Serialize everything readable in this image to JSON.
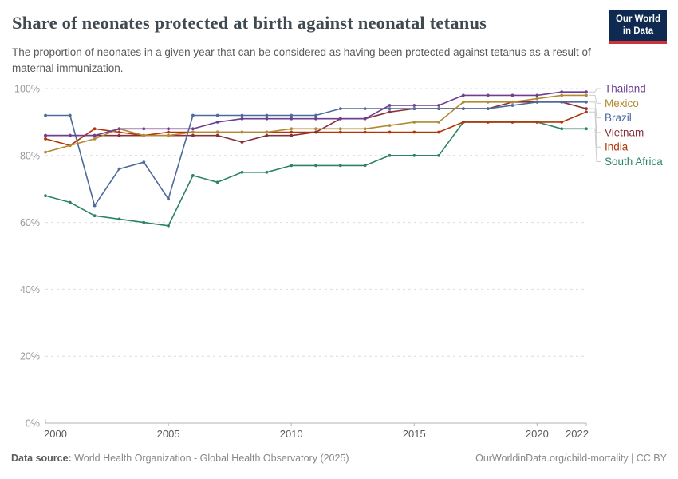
{
  "header": {
    "title": "Share of neonates protected at birth against neonatal tetanus",
    "subtitle": "The proportion of neonates in a given year that can be considered as having been protected against tetanus as a result of maternal immunization.",
    "logo": {
      "line1": "Our World",
      "line2": "in Data",
      "bg": "#0f2a50",
      "stripe": "#cf3337"
    }
  },
  "chart_data": {
    "type": "line",
    "x": [
      2000,
      2001,
      2002,
      2003,
      2004,
      2005,
      2006,
      2007,
      2008,
      2009,
      2010,
      2011,
      2012,
      2013,
      2014,
      2015,
      2016,
      2017,
      2018,
      2019,
      2020,
      2021,
      2022
    ],
    "series": [
      {
        "name": "Thailand",
        "color": "#6d3e91",
        "values": [
          86,
          86,
          86,
          88,
          88,
          88,
          88,
          90,
          91,
          91,
          91,
          91,
          91,
          91,
          95,
          95,
          95,
          98,
          98,
          98,
          98,
          99,
          99
        ]
      },
      {
        "name": "Mexico",
        "color": "#b18a33",
        "values": [
          81,
          83,
          85,
          88,
          86,
          86,
          87,
          87,
          87,
          87,
          88,
          88,
          88,
          88,
          89,
          90,
          90,
          96,
          96,
          96,
          97,
          98,
          98
        ]
      },
      {
        "name": "Brazil",
        "color": "#4c6a9c",
        "values": [
          92,
          92,
          65,
          76,
          78,
          67,
          92,
          92,
          92,
          92,
          92,
          92,
          94,
          94,
          94,
          94,
          94,
          94,
          94,
          95,
          96,
          96,
          96
        ]
      },
      {
        "name": "Vietnam",
        "color": "#883039",
        "values": [
          86,
          86,
          86,
          86,
          86,
          86,
          86,
          86,
          84,
          86,
          86,
          87,
          91,
          91,
          93,
          94,
          94,
          94,
          94,
          96,
          96,
          96,
          94
        ]
      },
      {
        "name": "India",
        "color": "#b13507",
        "values": [
          85,
          83,
          88,
          87,
          86,
          87,
          87,
          87,
          87,
          87,
          87,
          87,
          87,
          87,
          87,
          87,
          87,
          90,
          90,
          90,
          90,
          90,
          93
        ]
      },
      {
        "name": "South Africa",
        "color": "#2c8465",
        "values": [
          68,
          66,
          62,
          61,
          60,
          59,
          74,
          72,
          75,
          75,
          77,
          77,
          77,
          77,
          80,
          80,
          80,
          90,
          90,
          90,
          90,
          88,
          88
        ]
      }
    ],
    "ylim": [
      0,
      100
    ],
    "yticks": [
      0,
      20,
      40,
      60,
      80,
      100
    ],
    "ytick_suffix": "%",
    "xticks": [
      2000,
      2005,
      2010,
      2015,
      2020,
      2022
    ],
    "grid": "horizontal-dashed",
    "legend_position": "right",
    "axis_color": "#b3b3b3",
    "grid_color": "#dcdcdc",
    "ytick_label_color": "#999999",
    "xtick_label_color": "#5b5b5b"
  },
  "footer": {
    "source_label": "Data source:",
    "source_text": " World Health Organization - Global Health Observatory (2025)",
    "right_text": "OurWorldinData.org/child-mortality | CC BY"
  }
}
